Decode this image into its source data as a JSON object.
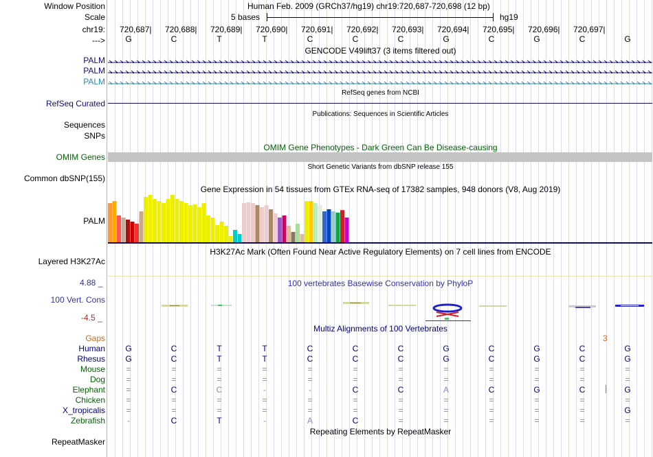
{
  "header": {
    "window_position_label": "Window Position",
    "window_position_text": "Human Feb. 2009 (GRCh37/hg19)   chr19:720,687-720,698 (12 bp)",
    "scale_label": "Scale",
    "scale_text": "5 bases",
    "assembly": "hg19",
    "chrom_label": "chr19:",
    "strand_label": "--->",
    "positions": [
      "720,687",
      "720,688",
      "720,689",
      "720,690",
      "720,691",
      "720,692",
      "720,693",
      "720,694",
      "720,695",
      "720,696",
      "720,697"
    ],
    "bases": [
      "G",
      "C",
      "T",
      "T",
      "C",
      "C",
      "C",
      "G",
      "C",
      "G",
      "C",
      "G"
    ]
  },
  "tracks": {
    "gencode": {
      "title": "GENCODE V49lift37 (3 items filtered out)",
      "items": [
        "PALM",
        "PALM",
        "PALM"
      ]
    },
    "refseq": {
      "title": "RefSeq genes from NCBI",
      "label": "RefSeq Curated"
    },
    "publications": {
      "title": "Publications: Sequences in Scientific Articles",
      "labels": [
        "Sequences",
        "SNPs"
      ]
    },
    "omim": {
      "title": "OMIM Gene Phenotypes - Dark Green Can Be Disease-causing",
      "label": "OMIM Genes"
    },
    "dbsnp": {
      "title": "Short Genetic Variants from dbSNP release 155",
      "label": "Common dbSNP(155)"
    },
    "gtex": {
      "title": "Gene Expression in 54 tissues from GTEx RNA-seq of 17382 samples, 948 donors (V8, Aug 2019)",
      "label": "PALM"
    },
    "h3k27ac": {
      "title": "H3K27Ac Mark (Often Found Near Active Regulatory Elements) on 7 cell lines from ENCODE",
      "label": "Layered H3K27Ac"
    },
    "phylop": {
      "title": "100 vertebrates Basewise Conservation by PhyloP",
      "label": "100 Vert. Cons",
      "max": "4.88 _",
      "min": "-4.5 _"
    },
    "multiz": {
      "title": "Multiz Alignments of 100 Vertebrates",
      "gaps_label": "Gaps",
      "gaps_value": "3"
    },
    "repeatmasker": {
      "title": "Repeating Elements by RepeatMasker",
      "label": "RepeatMasker"
    }
  },
  "alignment": [
    {
      "species": "Human",
      "color": "#000080",
      "cells": [
        "G",
        "C",
        "T",
        "T",
        "C",
        "C",
        "C",
        "G",
        "C",
        "G",
        "C",
        "G"
      ]
    },
    {
      "species": "Rhesus",
      "color": "#000080",
      "cells": [
        "G",
        "C",
        "T",
        "T",
        "C",
        "C",
        "C",
        "G",
        "C",
        "G",
        "C",
        "G"
      ]
    },
    {
      "species": "Mouse",
      "color": "#006400",
      "cells": [
        "=",
        "=",
        "=",
        "=",
        "=",
        "=",
        "=",
        "=",
        "=",
        "=",
        "=",
        "="
      ]
    },
    {
      "species": "Dog",
      "color": "#006400",
      "cells": [
        "=",
        "=",
        "=",
        "=",
        "=",
        "=",
        "=",
        "=",
        "=",
        "=",
        "=",
        "="
      ]
    },
    {
      "species": "Elephant",
      "color": "#006400",
      "cells": [
        "=",
        "C",
        "C",
        "-",
        "-",
        "C",
        "C",
        "A",
        "C",
        "G",
        "C",
        "G"
      ]
    },
    {
      "species": "Chicken",
      "color": "#006400",
      "cells": [
        "=",
        "=",
        "=",
        "=",
        "=",
        "=",
        "=",
        "=",
        "=",
        "=",
        "=",
        "="
      ]
    },
    {
      "species": "X_tropicalis",
      "color": "#000080",
      "cells": [
        "=",
        "=",
        "=",
        "=",
        "=",
        "=",
        "=",
        "=",
        "=",
        "=",
        "=",
        "G"
      ]
    },
    {
      "species": "Zebrafish",
      "color": "#006400",
      "cells": [
        "-",
        "C",
        "T",
        "-",
        "A",
        "C",
        "=",
        "=",
        "=",
        "=",
        "=",
        "="
      ]
    }
  ],
  "gtex_bars": {
    "values": [
      0.95,
      1.0,
      0.65,
      0.6,
      0.55,
      0.5,
      0.45,
      0.75,
      1.1,
      1.15,
      1.05,
      1.0,
      0.95,
      1.05,
      1.15,
      1.05,
      1.0,
      0.95,
      0.9,
      0.92,
      0.85,
      0.95,
      0.65,
      0.6,
      0.42,
      0.5,
      0.4,
      0.15,
      0.3,
      0.2,
      0.95,
      0.97,
      0.95,
      0.9,
      0.85,
      0.9,
      0.8,
      0.7,
      0.6,
      0.65,
      0.4,
      0.25,
      0.45,
      0.2,
      1.0,
      1.0,
      0.95,
      0.9,
      0.75,
      0.8,
      0.75,
      0.72,
      0.78,
      0.6
    ],
    "colors": [
      "#FF9933",
      "#FFAA00",
      "#FF5555",
      "#CCAA99",
      "#AA1111",
      "#CC0000",
      "#EE3333",
      "#CCAA88",
      "#EEEE00",
      "#EEEE00",
      "#EEEE00",
      "#EEEE00",
      "#EEEE00",
      "#EEEE00",
      "#EEEE00",
      "#EEEE00",
      "#EEEE00",
      "#EEEE00",
      "#EEEE00",
      "#EEEE00",
      "#EEEE00",
      "#EEEE00",
      "#EEEE00",
      "#EEEE00",
      "#EEEE00",
      "#EEEE00",
      "#EEEE00",
      "#EEEE00",
      "#00CCCC",
      "#00CCCC",
      "#EECCCC",
      "#EECCCC",
      "#EECCCC",
      "#AA8866",
      "#EECCCC",
      "#EECCCC",
      "#AA8866",
      "#EECCCC",
      "#9955CC",
      "#CC0066",
      "#DDBB99",
      "#887766",
      "#AADD99",
      "#DDBB99",
      "#EEEE00",
      "#FFCC00",
      "#BBEEBB",
      "#DDEEDD",
      "#3366CC",
      "#0044BB",
      "#99CCCC",
      "#00AA44",
      "#CC2222",
      "#CC00CC"
    ]
  }
}
